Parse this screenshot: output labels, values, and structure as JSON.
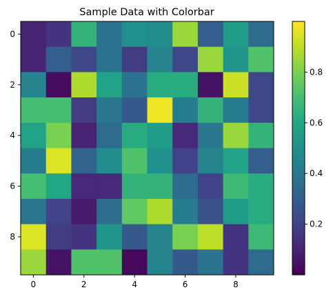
{
  "chart_data": {
    "type": "heatmap",
    "title": "Sample Data with Colorbar",
    "xlabel": "",
    "ylabel": "",
    "colormap": "viridis",
    "x_ticks": [
      0,
      2,
      4,
      6,
      8
    ],
    "y_ticks": [
      0,
      2,
      4,
      6,
      8
    ],
    "colorbar_ticks": [
      0.2,
      0.4,
      0.6,
      0.8
    ],
    "colorbar_range": [
      0.0,
      1.0
    ],
    "grid": false,
    "legend": "colorbar-right",
    "values": [
      [
        0.1,
        0.15,
        0.65,
        0.38,
        0.5,
        0.48,
        0.85,
        0.3,
        0.55,
        0.35
      ],
      [
        0.1,
        0.3,
        0.22,
        0.38,
        0.18,
        0.45,
        0.22,
        0.85,
        0.52,
        0.72
      ],
      [
        0.45,
        0.03,
        0.88,
        0.58,
        0.38,
        0.62,
        0.62,
        0.05,
        0.92,
        0.22
      ],
      [
        0.7,
        0.7,
        0.18,
        0.4,
        0.28,
        0.98,
        0.42,
        0.65,
        0.42,
        0.22
      ],
      [
        0.58,
        0.8,
        0.1,
        0.35,
        0.62,
        0.55,
        0.12,
        0.4,
        0.85,
        0.65
      ],
      [
        0.42,
        0.95,
        0.32,
        0.48,
        0.72,
        0.5,
        0.2,
        0.45,
        0.58,
        0.3
      ],
      [
        0.7,
        0.6,
        0.12,
        0.12,
        0.65,
        0.65,
        0.35,
        0.2,
        0.68,
        0.62
      ],
      [
        0.4,
        0.2,
        0.08,
        0.35,
        0.75,
        0.88,
        0.42,
        0.25,
        0.55,
        0.62
      ],
      [
        0.95,
        0.18,
        0.15,
        0.52,
        0.28,
        0.45,
        0.8,
        0.9,
        0.15,
        0.68
      ],
      [
        0.85,
        0.05,
        0.72,
        0.72,
        0.02,
        0.45,
        0.28,
        0.38,
        0.15,
        0.35
      ]
    ]
  }
}
